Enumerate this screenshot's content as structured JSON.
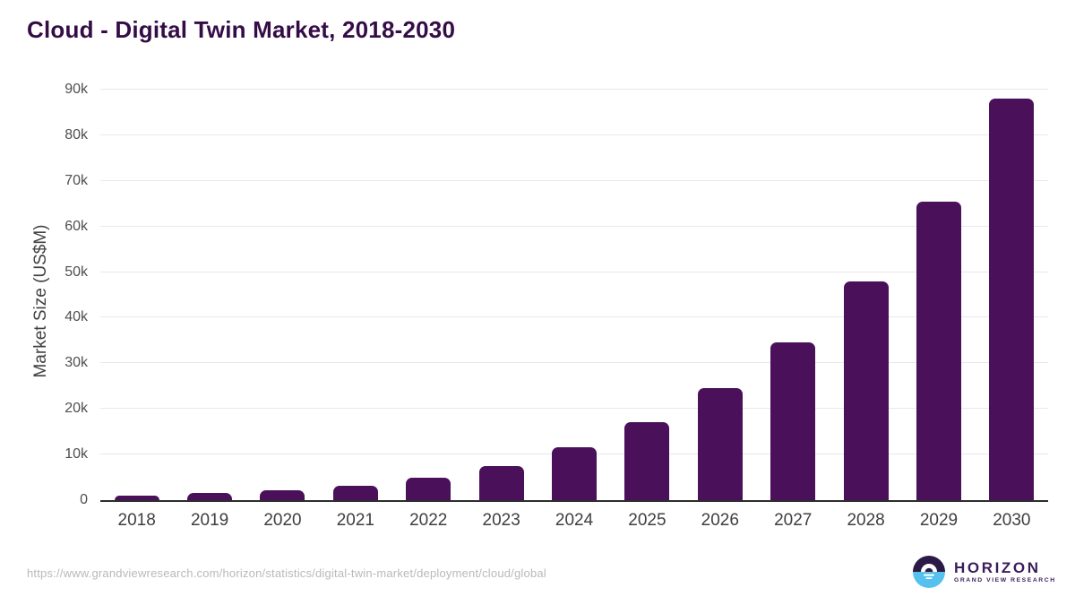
{
  "chart": {
    "title": "Cloud - Digital Twin Market, 2018-2030",
    "ylabel": "Market Size (US$M)"
  },
  "chart_data": {
    "type": "bar",
    "title": "Cloud - Digital Twin Market, 2018-2030",
    "xlabel": "",
    "ylabel": "Market Size (US$M)",
    "categories": [
      "2018",
      "2019",
      "2020",
      "2021",
      "2022",
      "2023",
      "2024",
      "2025",
      "2026",
      "2027",
      "2028",
      "2029",
      "2030"
    ],
    "values": [
      1000,
      1500,
      2100,
      3200,
      4900,
      7400,
      11600,
      17100,
      24600,
      34600,
      47900,
      65400,
      88000
    ],
    "ylim": [
      0,
      90000
    ],
    "ytick_step": 10000,
    "ytick_labels": [
      "0",
      "10k",
      "20k",
      "30k",
      "40k",
      "50k",
      "60k",
      "70k",
      "80k",
      "90k"
    ],
    "grid": true,
    "legend": false,
    "bar_color": "#4a1059"
  },
  "colors": {
    "title": "#340c46",
    "bar": "#4a1059",
    "gridline": "#e8e8e8",
    "axis_line": "#2d2d2d",
    "logo_purple": "#2b1a45",
    "logo_blue": "#56c0ee"
  },
  "footer": {
    "source_url": "https://www.grandviewresearch.com/horizon/statistics/digital-twin-market/deployment/cloud/global",
    "logo": {
      "wordmark": "HORIZON",
      "subtext": "GRAND VIEW RESEARCH"
    }
  }
}
